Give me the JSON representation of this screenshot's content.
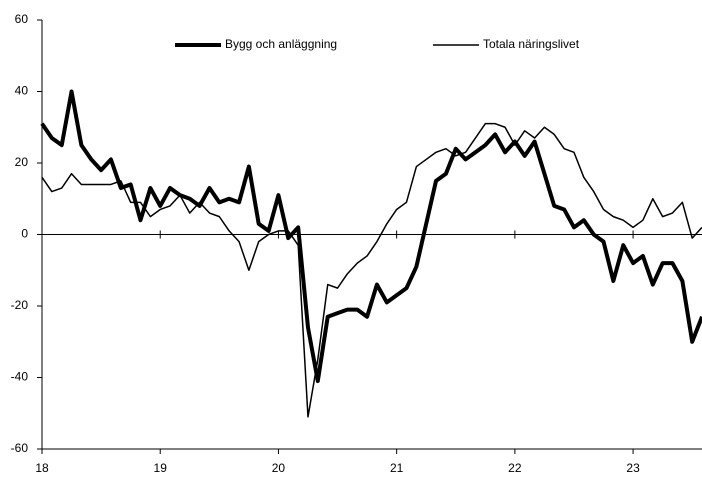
{
  "chart_data": {
    "type": "line",
    "x": [
      18,
      18.083,
      18.167,
      18.25,
      18.333,
      18.417,
      18.5,
      18.583,
      18.667,
      18.75,
      18.833,
      18.917,
      19,
      19.083,
      19.167,
      19.25,
      19.333,
      19.417,
      19.5,
      19.583,
      19.667,
      19.75,
      19.833,
      19.917,
      20,
      20.083,
      20.167,
      20.25,
      20.333,
      20.417,
      20.5,
      20.583,
      20.667,
      20.75,
      20.833,
      20.917,
      21,
      21.083,
      21.167,
      21.25,
      21.333,
      21.417,
      21.5,
      21.583,
      21.667,
      21.75,
      21.833,
      21.917,
      22,
      22.083,
      22.167,
      22.25,
      22.333,
      22.417,
      22.5,
      22.583,
      22.667,
      22.75,
      22.833,
      22.917,
      23,
      23.083,
      23.167,
      23.25,
      23.333,
      23.417,
      23.5,
      23.583
    ],
    "series": [
      {
        "name": "Bygg och anläggning",
        "color": "#000000",
        "width": 4,
        "values": [
          31,
          27,
          25,
          40,
          25,
          21,
          18,
          21,
          13,
          14,
          4,
          13,
          8,
          13,
          11,
          10,
          8,
          13,
          9,
          10,
          9,
          19,
          3,
          1,
          11,
          -1,
          2,
          -26,
          -41,
          -23,
          -22,
          -21,
          -21,
          -23,
          -14,
          -19,
          -17,
          -15,
          -9,
          3,
          15,
          17,
          24,
          21,
          23,
          25,
          28,
          23,
          26,
          22,
          26,
          17,
          8,
          7,
          2,
          4,
          0,
          -2,
          -13,
          -3,
          -8,
          -6,
          -14,
          -8,
          -8,
          -13,
          -30,
          -23
        ]
      },
      {
        "name": "Totala näringslivet",
        "color": "#000000",
        "width": 1.5,
        "values": [
          16,
          12,
          13,
          17,
          14,
          14,
          14,
          14,
          15,
          9,
          9,
          5,
          7,
          8,
          11,
          6,
          9,
          6,
          5,
          1,
          -2,
          -10,
          -2,
          0,
          1,
          1,
          -3,
          -51,
          -35,
          -14,
          -15,
          -11,
          -8,
          -6,
          -2,
          3,
          7,
          9,
          19,
          21,
          23,
          24,
          22,
          23,
          27,
          31,
          31,
          30,
          25,
          29,
          27,
          30,
          28,
          24,
          23,
          16,
          12,
          7,
          5,
          4,
          2,
          4,
          10,
          5,
          6,
          9,
          -1,
          2
        ]
      }
    ],
    "xlim": [
      18,
      23.583
    ],
    "xticks": [
      18,
      19,
      20,
      21,
      22,
      23
    ],
    "ylim": [
      -60,
      60
    ],
    "yticks": [
      -60,
      -40,
      -20,
      0,
      20,
      40,
      60
    ],
    "legend": "top"
  }
}
